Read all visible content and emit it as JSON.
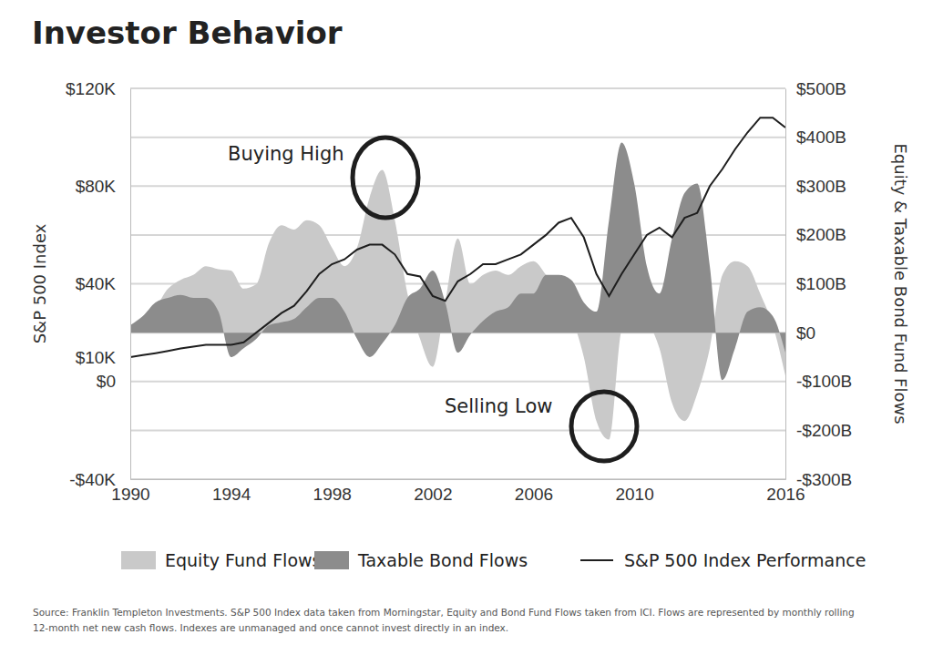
{
  "chart_data": {
    "type": "line",
    "title": "Investor Behavior",
    "ylabel": "S&P 500 Index",
    "y2label": "Equity & Taxable Bond Fund Flows",
    "annotations": [
      "Buying High",
      "Selling Low"
    ],
    "source": [
      "Source: Franklin Templeton Investments. S&P 500 Index data taken from Morningstar, Equity and Bond Fund Flows taken from ICI. Flows are represented by monthly rolling",
      "12-month net new cash flows. Indexes are unmanaged and once cannot invest directly in an index."
    ],
    "x": [
      1990,
      1990.5,
      1991,
      1991.5,
      1992,
      1992.5,
      1993,
      1993.5,
      1994,
      1994.5,
      1995,
      1995.5,
      1996,
      1996.5,
      1997,
      1997.5,
      1998,
      1998.5,
      1999,
      1999.5,
      2000,
      2000.5,
      2001,
      2001.5,
      2002,
      2002.5,
      2003,
      2003.5,
      2004,
      2004.5,
      2005,
      2005.5,
      2006,
      2006.5,
      2007,
      2007.5,
      2008,
      2008.5,
      2009,
      2009.5,
      2010,
      2010.5,
      2011,
      2011.5,
      2012,
      2012.5,
      2013,
      2013.5,
      2014,
      2014.5,
      2015,
      2015.5,
      2016
    ],
    "xlim": [
      1990,
      2016
    ],
    "xticks": [
      1990,
      1994,
      1998,
      2002,
      2006,
      2010,
      2016
    ],
    "ylim": [
      -40000,
      120000
    ],
    "yticks": [
      {
        "value": -40000,
        "label": "-$40K"
      },
      {
        "value": 0,
        "label": "$0"
      },
      {
        "value": 10000,
        "label": "$10K"
      },
      {
        "value": 40000,
        "label": "$40K"
      },
      {
        "value": 80000,
        "label": "$80K"
      },
      {
        "value": 120000,
        "label": "$120K"
      }
    ],
    "y2lim": [
      -300,
      500
    ],
    "y2ticks": [
      {
        "value": -300,
        "label": "-$300B"
      },
      {
        "value": -200,
        "label": "-$200B"
      },
      {
        "value": -100,
        "label": "-$100B"
      },
      {
        "value": 0,
        "label": "$0"
      },
      {
        "value": 100,
        "label": "$100B"
      },
      {
        "value": 200,
        "label": "$200B"
      },
      {
        "value": 300,
        "label": "$300B"
      },
      {
        "value": 400,
        "label": "$400B"
      },
      {
        "value": 500,
        "label": "$500B"
      }
    ],
    "grid": true,
    "legend": "bottom",
    "series": [
      {
        "name": "Equity Fund Flows",
        "type": "area",
        "axis": "y2",
        "color": "#c9c9c9",
        "values": [
          15,
          34,
          52,
          90,
          108,
          118,
          136,
          130,
          127,
          90,
          99,
          183,
          220,
          211,
          230,
          220,
          174,
          136,
          174,
          277,
          333,
          230,
          80,
          -13,
          -70,
          62,
          193,
          99,
          118,
          127,
          118,
          136,
          146,
          118,
          80,
          34,
          -50,
          -181,
          -219,
          6,
          43,
          24,
          -32,
          -144,
          -181,
          -125,
          -32,
          118,
          146,
          136,
          80,
          15,
          -88
        ]
      },
      {
        "name": "Taxable Bond Flows",
        "type": "area",
        "axis": "y2",
        "color": "#8c8c8c",
        "values": [
          15,
          34,
          62,
          71,
          77,
          71,
          71,
          43,
          -50,
          -32,
          -13,
          15,
          21,
          28,
          52,
          71,
          71,
          43,
          -13,
          -50,
          -22,
          15,
          71,
          90,
          127,
          62,
          -41,
          -4,
          24,
          43,
          52,
          80,
          80,
          118,
          118,
          108,
          62,
          43,
          230,
          389,
          305,
          136,
          80,
          193,
          286,
          305,
          136,
          -97,
          -32,
          43,
          52,
          34,
          -41
        ]
      },
      {
        "name": "S&P 500 Index Performance",
        "type": "line",
        "color": "#1e1e1e",
        "line_style": "solid",
        "values": [
          10000,
          10800,
          11600,
          12500,
          13500,
          14300,
          15000,
          15000,
          15000,
          16000,
          20000,
          24000,
          28000,
          31000,
          37000,
          44000,
          48000,
          50000,
          54000,
          56000,
          56000,
          52000,
          44000,
          43000,
          35000,
          33000,
          41000,
          44000,
          48000,
          48000,
          50000,
          52000,
          56000,
          60000,
          65000,
          67000,
          59000,
          44000,
          35000,
          44000,
          52000,
          60000,
          63000,
          59000,
          67000,
          69000,
          80000,
          87000,
          95000,
          102000,
          108000,
          108000,
          104000
        ]
      }
    ]
  }
}
